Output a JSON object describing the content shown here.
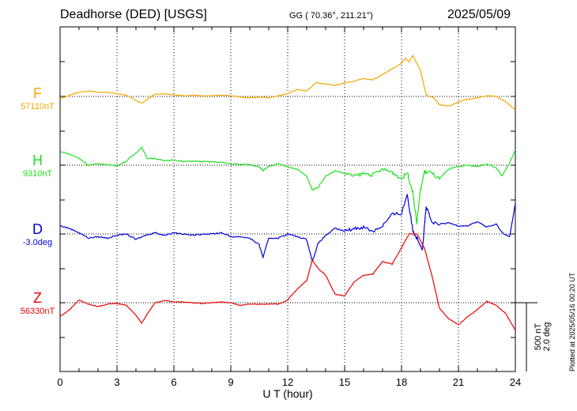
{
  "header": {
    "title": "Deadhorse (DED)  [USGS]",
    "coords": "GG ( 70.36°, 211.21°)",
    "date": "2025/05/09"
  },
  "plotted_note": "Plotted at 2025/05/16 00:20 UT",
  "chart_data": {
    "type": "line",
    "title": "Deadhorse (DED)  [USGS]",
    "xlabel": "U T (hour)",
    "xlim": [
      0,
      24
    ],
    "xticks": [
      "0",
      "3",
      "6",
      "9",
      "12",
      "15",
      "18",
      "21",
      "24"
    ],
    "grid": true,
    "scale_bar": {
      "nT": "500 nT",
      "deg": "2.0 deg"
    },
    "series": [
      {
        "name": "F",
        "baseline": "57110nT",
        "color": "#f5a800",
        "x": [
          0,
          0.5,
          1,
          1.5,
          2,
          2.5,
          3,
          3.5,
          4,
          4.3,
          4.6,
          5,
          5.5,
          6,
          6.5,
          7,
          7.5,
          8,
          8.5,
          9,
          9.5,
          10,
          10.5,
          11,
          11.5,
          12,
          12.5,
          13,
          13.5,
          14,
          14.5,
          15,
          15.5,
          16,
          16.5,
          17,
          17.5,
          18,
          18.2,
          18.4,
          18.6,
          18.8,
          19,
          19.3,
          19.7,
          20,
          20.5,
          21,
          21.5,
          22,
          22.5,
          23,
          23.5,
          24
        ],
        "y": [
          -20,
          10,
          30,
          40,
          30,
          30,
          20,
          10,
          -30,
          -50,
          -20,
          15,
          20,
          10,
          5,
          10,
          5,
          5,
          10,
          5,
          -5,
          -10,
          -5,
          -10,
          5,
          20,
          50,
          40,
          100,
          90,
          80,
          100,
          110,
          130,
          120,
          160,
          200,
          240,
          280,
          250,
          300,
          240,
          190,
          10,
          -10,
          -60,
          -70,
          -40,
          -20,
          -10,
          5,
          0,
          -40,
          -100
        ]
      },
      {
        "name": "H",
        "baseline": "9310nT",
        "color": "#22e022",
        "x": [
          0,
          0.5,
          1,
          1.5,
          2,
          2.5,
          3,
          3.5,
          4,
          4.3,
          4.6,
          5,
          5.5,
          6,
          6.5,
          7,
          7.5,
          8,
          8.5,
          9,
          9.5,
          10,
          10.5,
          10.7,
          11,
          11.5,
          12,
          12.5,
          13,
          13.3,
          13.6,
          14,
          14.5,
          15,
          15.5,
          16,
          16.5,
          17,
          17.5,
          18,
          18.3,
          18.6,
          18.8,
          19,
          19.2,
          19.5,
          20,
          20.5,
          21,
          21.5,
          22,
          22.5,
          23,
          23.3,
          23.7,
          24
        ],
        "y": [
          100,
          80,
          50,
          0,
          10,
          5,
          -5,
          30,
          90,
          130,
          50,
          50,
          30,
          40,
          25,
          30,
          25,
          25,
          20,
          10,
          5,
          5,
          -10,
          -40,
          -10,
          10,
          -10,
          -30,
          -80,
          -180,
          -160,
          -80,
          -40,
          -60,
          -80,
          -60,
          -70,
          -30,
          -50,
          -100,
          -50,
          -200,
          -420,
          -180,
          -50,
          -50,
          -100,
          -30,
          -10,
          0,
          -10,
          10,
          -20,
          -80,
          20,
          110
        ]
      },
      {
        "name": "D",
        "baseline": "-3.0deg",
        "color": "#0000dd",
        "x": [
          0,
          0.5,
          1,
          1.5,
          2,
          2.5,
          3,
          3.5,
          4,
          4.5,
          5,
          5.5,
          6,
          6.5,
          7,
          7.5,
          8,
          8.5,
          9,
          9.5,
          10,
          10.5,
          10.7,
          11,
          11.5,
          12,
          12.5,
          13,
          13.3,
          13.6,
          14,
          14.5,
          15,
          15.5,
          16,
          16.5,
          17,
          17.5,
          18,
          18.3,
          18.6,
          18.9,
          19.1,
          19.3,
          19.6,
          20,
          20.5,
          21,
          21.5,
          22,
          22.5,
          23,
          23.3,
          23.7,
          24
        ],
        "y": [
          60,
          40,
          10,
          -30,
          -20,
          -30,
          -10,
          0,
          -40,
          -10,
          10,
          -10,
          10,
          0,
          -10,
          0,
          0,
          10,
          -20,
          -20,
          -30,
          -80,
          -170,
          -30,
          -30,
          0,
          -20,
          -40,
          -200,
          -70,
          -10,
          40,
          20,
          40,
          50,
          20,
          60,
          140,
          150,
          290,
          20,
          -50,
          -110,
          200,
          80,
          70,
          80,
          60,
          60,
          90,
          50,
          70,
          10,
          -20,
          220
        ]
      },
      {
        "name": "Z",
        "baseline": "56330nT",
        "color": "#ee0000",
        "x": [
          0,
          0.5,
          1,
          1.5,
          2,
          2.5,
          3,
          3.5,
          4,
          4.3,
          4.6,
          5,
          5.5,
          6,
          6.5,
          7,
          7.5,
          8,
          8.5,
          9,
          9.5,
          10,
          10.5,
          11,
          11.5,
          12,
          12.5,
          13,
          13.3,
          13.6,
          14,
          14.5,
          15,
          15.5,
          16,
          16.5,
          17,
          17.5,
          18,
          18.4,
          18.8,
          19.2,
          19.6,
          20,
          20.5,
          21,
          21.5,
          22,
          22.5,
          23,
          23.5,
          24
        ],
        "y": [
          -100,
          -50,
          20,
          -10,
          -30,
          -10,
          -5,
          -20,
          -90,
          -150,
          -80,
          0,
          15,
          5,
          5,
          0,
          -5,
          0,
          5,
          0,
          -20,
          -10,
          -10,
          -10,
          -10,
          20,
          100,
          160,
          310,
          250,
          200,
          60,
          50,
          150,
          200,
          210,
          300,
          280,
          400,
          500,
          500,
          400,
          200,
          -40,
          -120,
          -160,
          -100,
          -50,
          10,
          -20,
          -80,
          -200
        ]
      }
    ]
  }
}
